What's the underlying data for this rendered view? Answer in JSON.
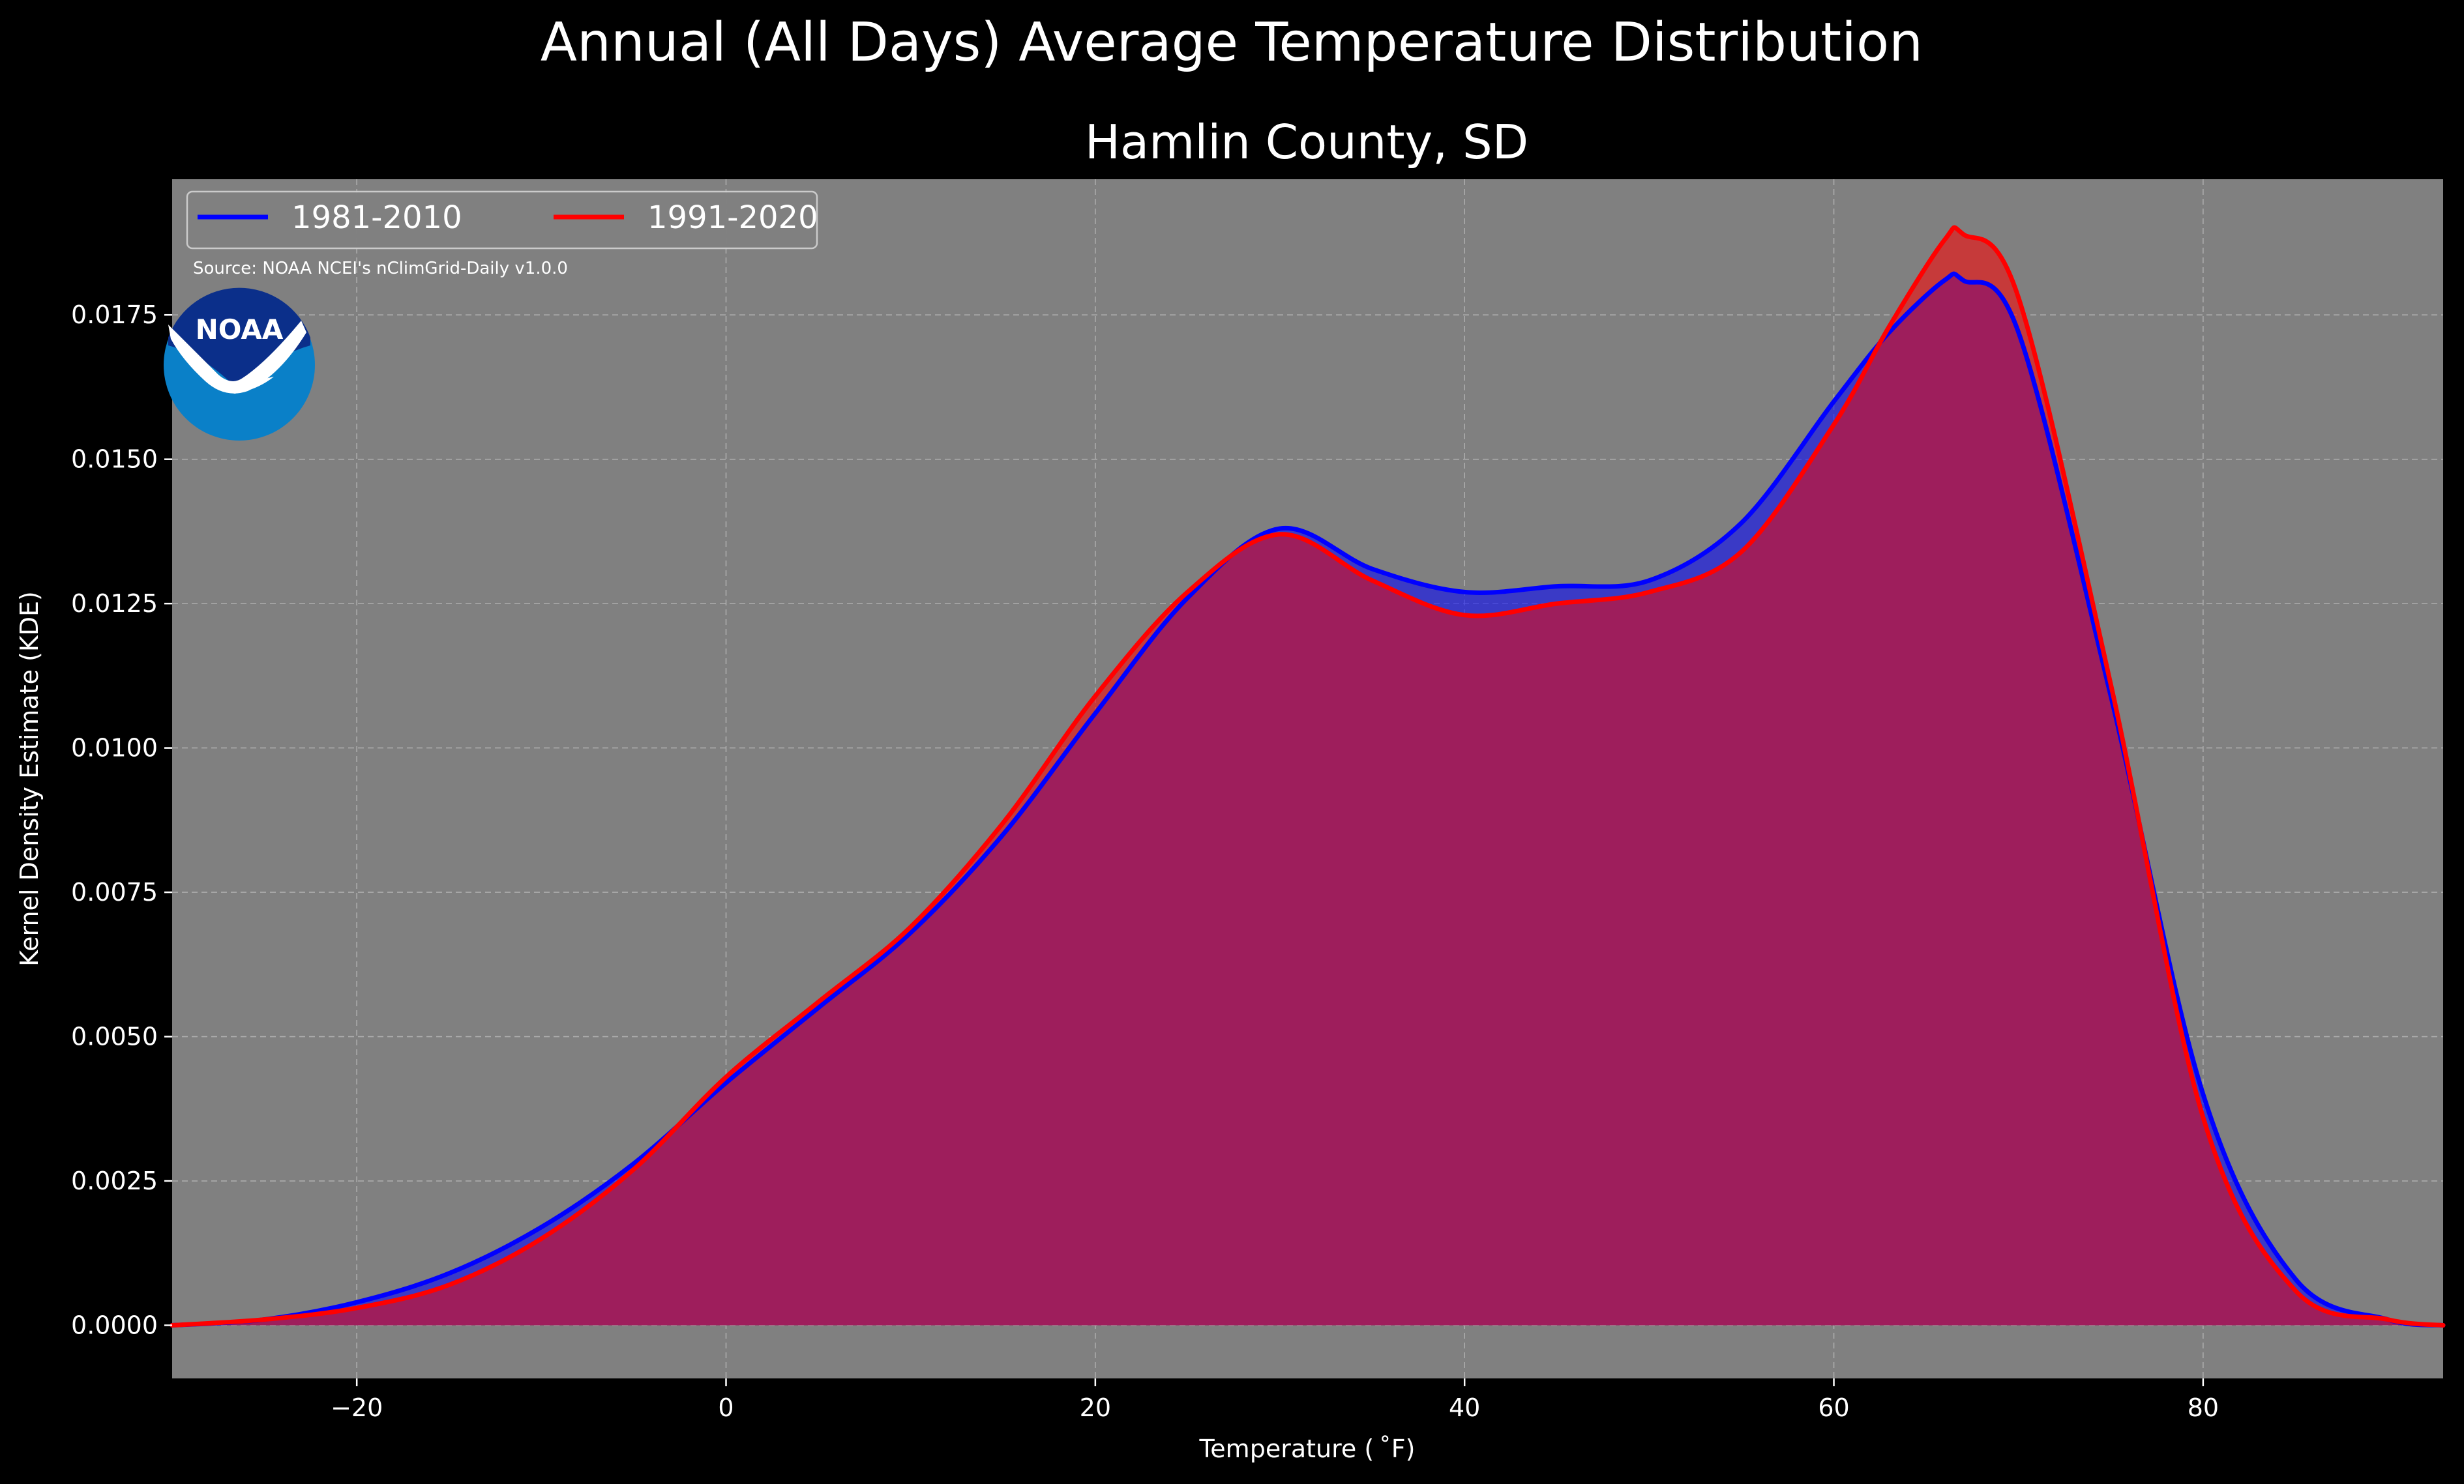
{
  "chart_data": {
    "type": "area",
    "suptitle": "Annual (All Days) Average Temperature Distribution",
    "title": "Hamlin County, SD",
    "xlabel": "Temperature ($^\\circ$F)",
    "xlabel_display": "Temperature ( ˚F)",
    "ylabel": "Kernel Density Estimate (KDE)",
    "source": "Source: NOAA NCEI's nClimGrid-Daily v1.0.0",
    "logo_text": "NOAA",
    "xlim": [
      -30,
      93
    ],
    "ylim": [
      -0.00092,
      0.01985
    ],
    "xticks": [
      -20,
      0,
      20,
      40,
      60,
      80
    ],
    "xtick_labels": [
      "−20",
      "0",
      "20",
      "40",
      "60",
      "80"
    ],
    "yticks": [
      0,
      0.0025,
      0.005,
      0.0075,
      0.01,
      0.0125,
      0.015,
      0.0175
    ],
    "ytick_labels": [
      "0.0000",
      "0.0025",
      "0.0050",
      "0.0075",
      "0.0100",
      "0.0125",
      "0.0150",
      "0.0175"
    ],
    "grid": true,
    "legend_position": "upper-left",
    "colors": {
      "background": "#000000",
      "plot_background": "#808080",
      "series_1981": "#0000ff",
      "series_1991": "#ff0000",
      "overlap_fill": "#9e1e5c"
    },
    "x": [
      -30,
      -25,
      -20,
      -15,
      -10,
      -5,
      0,
      5,
      10,
      15,
      20,
      25,
      30,
      35,
      40,
      45,
      50,
      55,
      60,
      63,
      66,
      67,
      70,
      75,
      80,
      85,
      90,
      93
    ],
    "series": [
      {
        "name": "1981-2010",
        "color": "#0000ff",
        "values": [
          0.0,
          0.0001,
          0.0004,
          0.0009,
          0.0017,
          0.0028,
          0.0042,
          0.0055,
          0.0068,
          0.0085,
          0.0106,
          0.0126,
          0.0138,
          0.0131,
          0.0127,
          0.0128,
          0.0129,
          0.0139,
          0.016,
          0.0172,
          0.0181,
          0.0181,
          0.0172,
          0.0109,
          0.004,
          0.0008,
          0.0001,
          0.0
        ]
      },
      {
        "name": "1991-2020",
        "color": "#ff0000",
        "values": [
          0.0,
          0.0001,
          0.0003,
          0.0007,
          0.0015,
          0.0027,
          0.0043,
          0.0056,
          0.0069,
          0.0087,
          0.0109,
          0.0127,
          0.0137,
          0.0129,
          0.0123,
          0.0125,
          0.0127,
          0.0134,
          0.0156,
          0.0173,
          0.0188,
          0.0189,
          0.0178,
          0.0111,
          0.0036,
          0.0006,
          0.0001,
          0.0
        ]
      }
    ]
  }
}
